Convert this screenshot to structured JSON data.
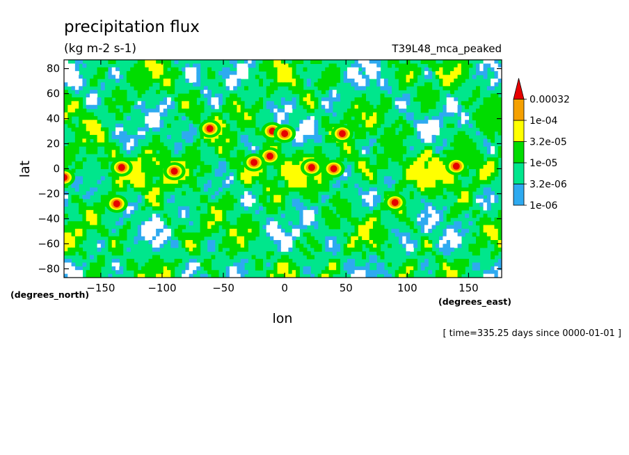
{
  "chart_data": {
    "type": "heatmap",
    "title": "precipitation flux",
    "units": "(kg m-2 s-1)",
    "subtitle": "T39L48_mca_peaked",
    "xlabel": "lon",
    "ylabel": "lat",
    "x_units": "(degrees_east)",
    "y_units": "(degrees_north)",
    "xlim": [
      -180,
      177
    ],
    "ylim": [
      -87,
      87
    ],
    "x_ticks": [
      -150,
      -100,
      -50,
      0,
      50,
      100,
      150
    ],
    "y_ticks": [
      -80,
      -60,
      -40,
      -20,
      0,
      20,
      40,
      60,
      80
    ],
    "x_tick_labels": [
      "−150",
      "−100",
      "−50",
      "0",
      "50",
      "100",
      "150"
    ],
    "y_tick_labels": [
      "−80",
      "−60",
      "−40",
      "−20",
      "0",
      "20",
      "40",
      "60",
      "80"
    ],
    "time_note": "[ time=335.25 days since 0000-01-01 ]",
    "legend": {
      "placement": "right",
      "levels": [
        "1e-06",
        "3.2e-06",
        "1e-05",
        "3.2e-05",
        "1e-04",
        "0.00032"
      ],
      "colors": [
        "#ffffff",
        "#2eaaf0",
        "#00e68c",
        "#00dc00",
        "#ffff00",
        "#f5a000",
        "#e60000"
      ]
    },
    "grid": false,
    "peaks": [
      {
        "lon": -180,
        "lat": -7,
        "level": 5
      },
      {
        "lon": -133,
        "lat": 1,
        "level": 5
      },
      {
        "lon": -90,
        "lat": -2,
        "level": 5
      },
      {
        "lon": -61,
        "lat": 32,
        "level": 5
      },
      {
        "lon": -10,
        "lat": 30,
        "level": 5
      },
      {
        "lon": -12,
        "lat": 10,
        "level": 5
      },
      {
        "lon": -25,
        "lat": 5,
        "level": 5
      },
      {
        "lon": -137,
        "lat": -28,
        "level": 5
      },
      {
        "lon": 0,
        "lat": 28,
        "level": 5
      },
      {
        "lon": 40,
        "lat": 0,
        "level": 5
      },
      {
        "lon": 47,
        "lat": 28,
        "level": 5
      },
      {
        "lon": 90,
        "lat": -27,
        "level": 5
      },
      {
        "lon": 140,
        "lat": 2,
        "level": 5
      },
      {
        "lon": 22,
        "lat": 1,
        "level": 5
      }
    ]
  }
}
